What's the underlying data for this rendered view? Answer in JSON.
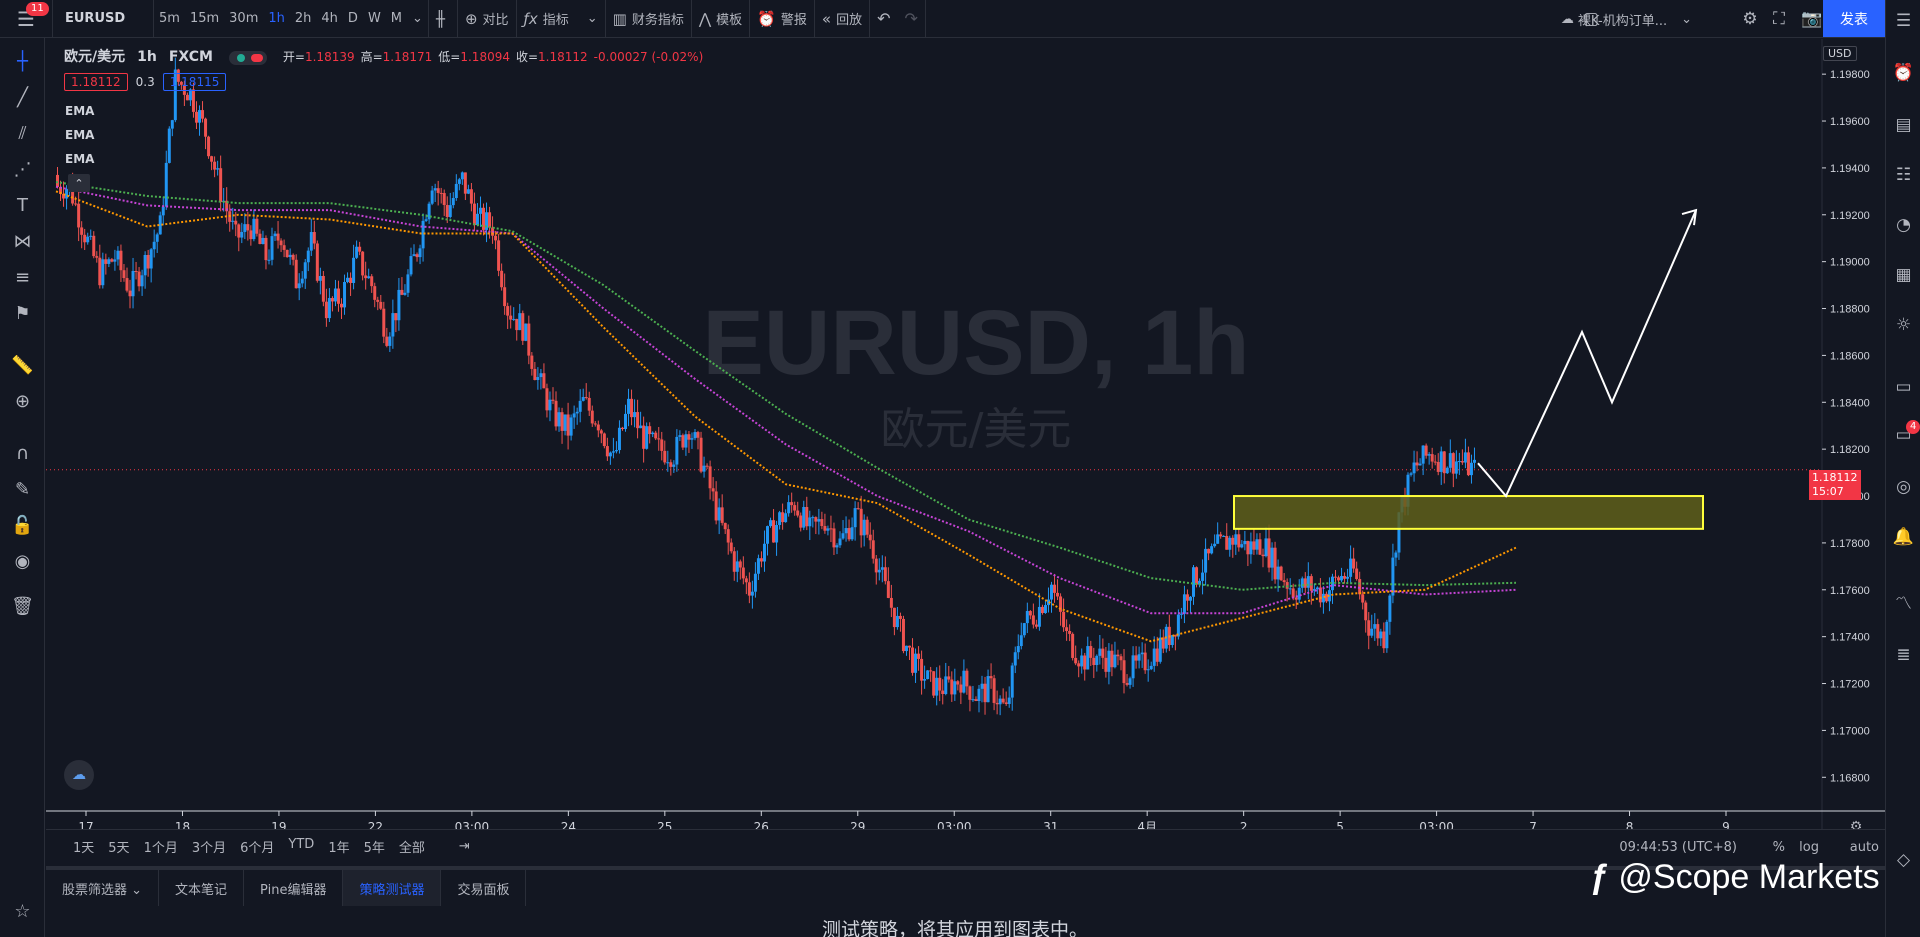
{
  "topbar": {
    "menu_badge": "11",
    "symbol": "EURUSD",
    "timeframes": [
      "5m",
      "15m",
      "30m",
      "1h",
      "2h",
      "4h",
      "D",
      "W",
      "M"
    ],
    "active_timeframe": "1h",
    "compare": "对比",
    "indicators": "指标",
    "financials": "财务指标",
    "templates": "模板",
    "alerts": "警报",
    "replay": "回放",
    "layout_name": "裸K-机构订单...",
    "publish": "发表"
  },
  "legend": {
    "title": "欧元/美元",
    "interval": "1h",
    "exchange": "FXCM",
    "open_label": "开=",
    "open": "1.18139",
    "high_label": "高=",
    "high": "1.18171",
    "low_label": "低=",
    "low": "1.18094",
    "close_label": "收=",
    "close": "1.18112",
    "change": "-0.00027 (-0.02%)",
    "sell": "1.18112",
    "spread": "0.3",
    "buy": "1.18115",
    "indicators": [
      "EMA",
      "EMA",
      "EMA"
    ]
  },
  "watermark": {
    "line1": "EURUSD, 1h",
    "line2": "欧元/美元"
  },
  "price_axis": {
    "currency": "USD",
    "current_price": "1.18112",
    "countdown": "15:07"
  },
  "chart_data": {
    "type": "candlestick",
    "ylim": [
      1.1675,
      1.1995
    ],
    "y_ticks": [
      "1.19800",
      "1.19600",
      "1.19400",
      "1.19200",
      "1.19000",
      "1.18800",
      "1.18600",
      "1.18400",
      "1.18200",
      "1.18000",
      "1.17800",
      "1.17600",
      "1.17400",
      "1.17200",
      "1.17000",
      "1.16800"
    ],
    "x_ticks": [
      "17",
      "18",
      "19",
      "22",
      "03:00",
      "24",
      "25",
      "26",
      "29",
      "03:00",
      "31",
      "4月",
      "2",
      "5",
      "03:00",
      "7",
      "8",
      "9"
    ],
    "closes": [
      1.1932,
      1.1912,
      1.1895,
      1.1902,
      1.1888,
      1.19,
      1.1915,
      1.1978,
      1.1972,
      1.1955,
      1.193,
      1.191,
      1.1915,
      1.1902,
      1.1912,
      1.1892,
      1.1908,
      1.188,
      1.1885,
      1.1902,
      1.189,
      1.187,
      1.1885,
      1.1905,
      1.1935,
      1.1922,
      1.1935,
      1.1918,
      1.1915,
      1.188,
      1.1872,
      1.185,
      1.1835,
      1.1828,
      1.184,
      1.1832,
      1.1815,
      1.1838,
      1.1825,
      1.182,
      1.1818,
      1.183,
      1.1812,
      1.179,
      1.1772,
      1.176,
      1.178,
      1.179,
      1.1797,
      1.1785,
      1.179,
      1.178,
      1.1792,
      1.1782,
      1.176,
      1.1742,
      1.1727,
      1.172,
      1.1718,
      1.1722,
      1.1715,
      1.1718,
      1.1708,
      1.1745,
      1.175,
      1.1762,
      1.174,
      1.173,
      1.1732,
      1.173,
      1.1725,
      1.1728,
      1.1735,
      1.1742,
      1.176,
      1.177,
      1.1778,
      1.1782,
      1.1778,
      1.178,
      1.1768,
      1.176,
      1.1762,
      1.1758,
      1.1765,
      1.1768,
      1.1745,
      1.174,
      1.1792,
      1.1812,
      1.1818,
      1.1815,
      1.1815,
      1.1811
    ],
    "ema_lines": [
      {
        "color": "#4caf50",
        "values": [
          1.1934,
          1.1928,
          1.1925,
          1.1925,
          1.192,
          1.1913,
          1.189,
          1.1862,
          1.1835,
          1.1812,
          1.179,
          1.1778,
          1.1765,
          1.176,
          1.1763,
          1.1762,
          1.1763
        ]
      },
      {
        "color": "#c644d6",
        "values": [
          1.1932,
          1.1924,
          1.1922,
          1.1922,
          1.1915,
          1.1912,
          1.188,
          1.185,
          1.1822,
          1.18,
          1.1785,
          1.1765,
          1.175,
          1.175,
          1.1762,
          1.1758,
          1.176
        ]
      },
      {
        "color": "#ff9800",
        "values": [
          1.193,
          1.1915,
          1.192,
          1.1918,
          1.1912,
          1.1912,
          1.1872,
          1.1834,
          1.1805,
          1.1797,
          1.1775,
          1.1752,
          1.1738,
          1.1748,
          1.1758,
          1.176,
          1.1778
        ]
      }
    ],
    "zone": [
      1.1786,
      1.18
    ],
    "projection": [
      1.1814,
      1.18,
      1.187,
      1.184,
      1.1922
    ]
  },
  "range_bar": {
    "ranges": [
      "1天",
      "5天",
      "1个月",
      "3个月",
      "6个月",
      "YTD",
      "1年",
      "5年",
      "全部"
    ],
    "clock": "09:44:53 (UTC+8)",
    "percent": "%",
    "log": "log",
    "auto": "auto"
  },
  "bottom_tabs": [
    "股票筛选器",
    "文本笔记",
    "Pine编辑器",
    "策略测试器",
    "交易面板"
  ],
  "active_tab": "策略测试器",
  "panel_message": "测试策略，将其应用到图表中。",
  "brand_watermark": "@Scope Markets",
  "notifications": "4",
  "colors": {
    "up": "#2196f3",
    "down": "#ef5350",
    "accent": "#2962ff",
    "zone_fill": "#5f5f1a",
    "zone_border": "#ffff3b"
  }
}
